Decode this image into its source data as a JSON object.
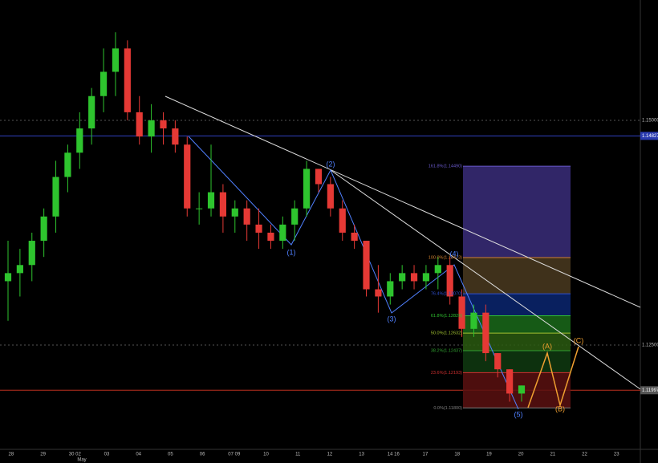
{
  "chart_data": {
    "type": "candlestick",
    "ylim": [
      1.11339,
      1.16339
    ],
    "yticks": [
      {
        "value": 1.15,
        "label": "1.15000"
      },
      {
        "value": 1.125,
        "label": "1.12500"
      }
    ],
    "price_lines": [
      {
        "value": 1.14827,
        "color": "#3040c0"
      },
      {
        "value": 1.11997,
        "color": "#c03020"
      }
    ],
    "xticks": [
      "28",
      "29",
      "30 02",
      "03",
      "04",
      "05",
      "06",
      "07 09",
      "10",
      "11",
      "12",
      "13",
      "14 16",
      "17",
      "18",
      "19",
      "20",
      "21",
      "22",
      "23"
    ],
    "month_label": "May",
    "up_color": "#2ec42e",
    "down_color": "#e53935",
    "ohlc": [
      [
        1.1321,
        1.1366,
        1.1277,
        1.133
      ],
      [
        1.133,
        1.1357,
        1.1304,
        1.1339
      ],
      [
        1.1339,
        1.1375,
        1.1321,
        1.1366
      ],
      [
        1.1366,
        1.1402,
        1.1348,
        1.1393
      ],
      [
        1.1393,
        1.1455,
        1.1375,
        1.1437
      ],
      [
        1.1437,
        1.1473,
        1.142,
        1.1464
      ],
      [
        1.1464,
        1.1509,
        1.1446,
        1.1491
      ],
      [
        1.1491,
        1.1536,
        1.1473,
        1.1527
      ],
      [
        1.1527,
        1.158,
        1.1509,
        1.1554
      ],
      [
        1.1554,
        1.1598,
        1.1527,
        1.158
      ],
      [
        1.158,
        1.1589,
        1.15,
        1.1509
      ],
      [
        1.1509,
        1.1527,
        1.1473,
        1.1482
      ],
      [
        1.1482,
        1.1518,
        1.1464,
        1.15
      ],
      [
        1.15,
        1.1509,
        1.1473,
        1.1491
      ],
      [
        1.1491,
        1.15,
        1.1464,
        1.1473
      ],
      [
        1.1473,
        1.1482,
        1.1393,
        1.1402
      ],
      [
        1.1402,
        1.142,
        1.1384,
        1.1402
      ],
      [
        1.1402,
        1.1473,
        1.1393,
        1.142
      ],
      [
        1.142,
        1.1429,
        1.1375,
        1.1393
      ],
      [
        1.1393,
        1.1411,
        1.1375,
        1.1402
      ],
      [
        1.1402,
        1.1411,
        1.1366,
        1.1384
      ],
      [
        1.1384,
        1.1402,
        1.1357,
        1.1375
      ],
      [
        1.1375,
        1.1384,
        1.1357,
        1.1366
      ],
      [
        1.1366,
        1.1393,
        1.1357,
        1.1384
      ],
      [
        1.1384,
        1.1411,
        1.1366,
        1.1402
      ],
      [
        1.1402,
        1.1455,
        1.1393,
        1.1446
      ],
      [
        1.1446,
        1.1446,
        1.142,
        1.1429
      ],
      [
        1.1429,
        1.1437,
        1.1393,
        1.1402
      ],
      [
        1.1402,
        1.1411,
        1.1366,
        1.1375
      ],
      [
        1.1375,
        1.1384,
        1.1357,
        1.1366
      ],
      [
        1.1366,
        1.1366,
        1.1304,
        1.1312
      ],
      [
        1.1312,
        1.1339,
        1.1286,
        1.1304
      ],
      [
        1.1304,
        1.133,
        1.1295,
        1.1321
      ],
      [
        1.1321,
        1.1339,
        1.1312,
        1.133
      ],
      [
        1.133,
        1.1339,
        1.1312,
        1.1321
      ],
      [
        1.1321,
        1.1339,
        1.1312,
        1.133
      ],
      [
        1.133,
        1.1348,
        1.1312,
        1.1339
      ],
      [
        1.1339,
        1.1348,
        1.1295,
        1.1304
      ],
      [
        1.1304,
        1.1312,
        1.1259,
        1.1268
      ],
      [
        1.1268,
        1.1295,
        1.1259,
        1.1286
      ],
      [
        1.1286,
        1.1295,
        1.1232,
        1.1241
      ],
      [
        1.1241,
        1.1241,
        1.1214,
        1.1223
      ],
      [
        1.1223,
        1.1223,
        1.1187,
        1.1196
      ],
      [
        1.1196,
        1.1205,
        1.1187,
        1.1205
      ]
    ],
    "fib_levels": [
      {
        "value": 1.1449,
        "label": "161.8%(1.14490)",
        "color": "#6a5acd"
      },
      {
        "value": 1.13473,
        "label": "100.0%(1.13473)",
        "color": "#d08030"
      },
      {
        "value": 1.1307,
        "label": "76.4%(1.13070)",
        "color": "#3050d0"
      },
      {
        "value": 1.12826,
        "label": "61.8%(1.12826)",
        "color": "#30c030"
      },
      {
        "value": 1.12632,
        "label": "50.0%(1.12632)",
        "color": "#a0c030"
      },
      {
        "value": 1.12437,
        "label": "38.2%(1.12437)",
        "color": "#30a030"
      },
      {
        "value": 1.12193,
        "label": "23.6%(1.12193)",
        "color": "#d03030"
      },
      {
        "value": 1.118,
        "label": "0.0%(1.11800)",
        "color": "#808080"
      }
    ],
    "fib_fills": [
      "#3a2d7a",
      "#4a3a20",
      "#0a2670",
      "#1a6a1a",
      "#2a5a10",
      "#0f3a10",
      "#5a1010"
    ],
    "wave_labels": [
      "(1)",
      "(2)",
      "(3)",
      "(4)",
      "(5)"
    ],
    "wave_color": "#5080ff",
    "correction_labels": [
      "(A)",
      "(B)",
      "(C)"
    ],
    "correction_color": "#f0a030"
  }
}
